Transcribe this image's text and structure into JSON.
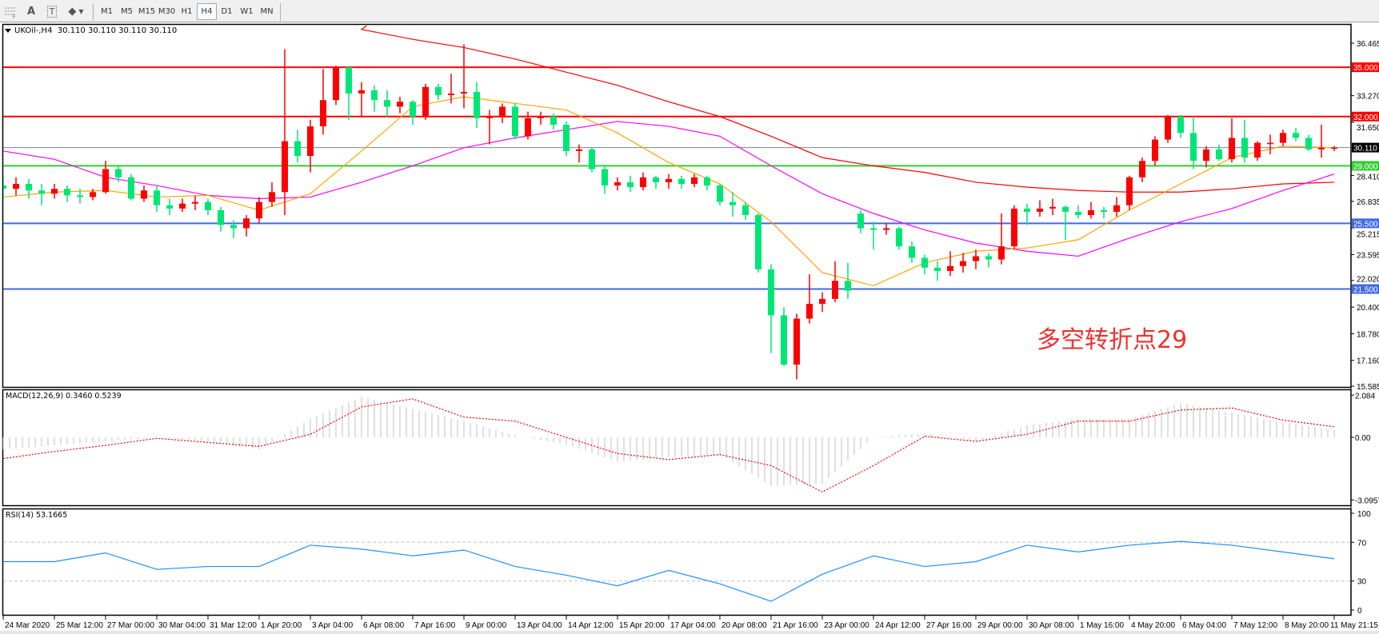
{
  "toolbar": {
    "icons": [
      "grid-icon",
      "text-a-icon",
      "text-label-icon",
      "shapes-icon"
    ],
    "text_icon_label": "A",
    "label_icon_label": "T",
    "timeframes": [
      "M1",
      "M5",
      "M15",
      "M30",
      "H1",
      "H4",
      "D1",
      "W1",
      "MN"
    ],
    "active_timeframe": "H4"
  },
  "chart": {
    "symbol_header": "UKOil-,H4  30.110 30.110 30.110 30.110",
    "annotation": "多空转折点29",
    "macd_label": "MACD(12,26,9) 0.3460 0.5239",
    "rsi_label": "RSI(14) 53.1665"
  },
  "chart_data": {
    "type": "candlestick",
    "symbol": "UKOil-",
    "timeframe": "H4",
    "colors": {
      "up": "#ff0000",
      "down": "#00e676",
      "ma_long": "#ff0000",
      "ma_mid": "#ff00ff",
      "ma_short": "#ffa500",
      "macd_hist": "#c0c0c0",
      "macd_signal": "#ff0000",
      "rsi": "#1e90ff"
    },
    "price_axis": {
      "range": [
        15.585,
        36.465
      ],
      "ticks": [
        "36.465",
        "33.270",
        "31.650",
        "28.410",
        "26.835",
        "25.215",
        "23.595",
        "22.020",
        "20.400",
        "18.780",
        "17.160",
        "15.585"
      ]
    },
    "time_axis": [
      "24 Mar 2020",
      "25 Mar 12:00",
      "27 Mar 00:00",
      "30 Mar 04:00",
      "31 Mar 12:00",
      "1 Apr 20:00",
      "3 Apr 04:00",
      "6 Apr 08:00",
      "7 Apr 16:00",
      "9 Apr 00:00",
      "13 Apr 04:00",
      "14 Apr 12:00",
      "15 Apr 20:00",
      "17 Apr 04:00",
      "20 Apr 08:00",
      "21 Apr 16:00",
      "23 Apr 00:00",
      "24 Apr 12:00",
      "27 Apr 16:00",
      "29 Apr 00:00",
      "30 Apr 08:00",
      "1 May 16:00",
      "4 May 20:00",
      "6 May 04:00",
      "7 May 12:00",
      "8 May 20:00",
      "11 May 21:15"
    ],
    "horizontal_lines": [
      {
        "price": 35.0,
        "label": "35.000",
        "color": "#ff0000"
      },
      {
        "price": 32.0,
        "label": "32.000",
        "color": "#ff0000"
      },
      {
        "price": 30.11,
        "label": "30.110",
        "color": "#778899",
        "label_bg": "#000000"
      },
      {
        "price": 29.0,
        "label": "29.000",
        "color": "#32cd32"
      },
      {
        "price": 25.5,
        "label": "25.500",
        "color": "#4169e1"
      },
      {
        "price": 21.5,
        "label": "21.500",
        "color": "#4169e1"
      }
    ],
    "ohlc": [
      [
        27.8,
        28.4,
        27.0,
        27.6
      ],
      [
        27.6,
        28.3,
        27.2,
        27.9
      ],
      [
        27.9,
        28.2,
        27.0,
        27.5
      ],
      [
        27.5,
        27.9,
        26.6,
        27.3
      ],
      [
        27.3,
        27.9,
        27.0,
        27.6
      ],
      [
        27.6,
        27.8,
        26.8,
        27.2
      ],
      [
        27.2,
        27.6,
        26.7,
        27.1
      ],
      [
        27.1,
        27.6,
        26.9,
        27.4
      ],
      [
        27.4,
        29.3,
        27.3,
        28.8
      ],
      [
        28.8,
        29.0,
        28.0,
        28.3
      ],
      [
        28.3,
        28.5,
        26.9,
        27.0
      ],
      [
        27.0,
        27.8,
        26.8,
        27.5
      ],
      [
        27.5,
        27.8,
        26.2,
        26.6
      ],
      [
        26.6,
        27.0,
        26.0,
        26.4
      ],
      [
        26.4,
        27.0,
        26.2,
        26.7
      ],
      [
        26.7,
        27.2,
        26.3,
        26.8
      ],
      [
        26.8,
        27.0,
        26.0,
        26.3
      ],
      [
        26.3,
        26.5,
        25.0,
        25.4
      ],
      [
        25.4,
        25.7,
        24.6,
        25.2
      ],
      [
        25.2,
        26.0,
        24.7,
        25.8
      ],
      [
        25.8,
        27.1,
        25.5,
        26.8
      ],
      [
        26.8,
        28.0,
        26.5,
        27.4
      ],
      [
        27.4,
        36.1,
        26.0,
        30.5
      ],
      [
        30.5,
        31.2,
        29.2,
        29.6
      ],
      [
        29.6,
        31.8,
        28.6,
        31.4
      ],
      [
        31.4,
        34.9,
        30.9,
        33.0
      ],
      [
        33.0,
        35.1,
        32.7,
        35.0
      ],
      [
        35.0,
        35.0,
        31.8,
        33.4
      ],
      [
        33.4,
        34.1,
        32.0,
        33.6
      ],
      [
        33.6,
        33.9,
        32.3,
        33.0
      ],
      [
        33.0,
        33.6,
        32.0,
        32.6
      ],
      [
        32.6,
        33.2,
        32.2,
        32.9
      ],
      [
        32.9,
        33.0,
        31.5,
        32.0
      ],
      [
        32.0,
        34.0,
        31.8,
        33.8
      ],
      [
        33.8,
        34.0,
        33.0,
        33.3
      ],
      [
        33.3,
        34.6,
        32.8,
        33.4
      ],
      [
        33.4,
        36.4,
        32.5,
        33.5
      ],
      [
        33.5,
        34.1,
        31.3,
        31.9
      ],
      [
        31.9,
        32.4,
        30.3,
        32.0
      ],
      [
        32.0,
        32.8,
        31.6,
        32.6
      ],
      [
        32.6,
        32.8,
        30.6,
        30.8
      ],
      [
        30.8,
        32.3,
        30.6,
        31.9
      ],
      [
        31.9,
        32.3,
        31.5,
        32.0
      ],
      [
        32.0,
        32.2,
        31.2,
        31.5
      ],
      [
        31.5,
        31.7,
        29.6,
        29.9
      ],
      [
        29.9,
        30.3,
        29.2,
        30.0
      ],
      [
        30.0,
        30.1,
        28.6,
        28.8
      ],
      [
        28.8,
        29.0,
        27.3,
        27.8
      ],
      [
        27.8,
        28.3,
        27.5,
        28.0
      ],
      [
        28.0,
        28.4,
        27.4,
        27.7
      ],
      [
        27.7,
        28.6,
        27.5,
        28.3
      ],
      [
        28.3,
        28.4,
        27.6,
        28.0
      ],
      [
        28.0,
        28.5,
        27.6,
        28.2
      ],
      [
        28.2,
        28.4,
        27.6,
        27.9
      ],
      [
        27.9,
        28.5,
        27.7,
        28.3
      ],
      [
        28.3,
        28.4,
        27.5,
        27.8
      ],
      [
        27.8,
        27.9,
        26.6,
        26.8
      ],
      [
        26.8,
        27.4,
        25.9,
        26.6
      ],
      [
        26.6,
        26.8,
        25.7,
        26.0
      ],
      [
        26.0,
        26.1,
        22.5,
        22.7
      ],
      [
        22.7,
        23.0,
        17.6,
        19.9
      ],
      [
        19.9,
        20.4,
        16.8,
        16.9
      ],
      [
        16.9,
        20.0,
        16.0,
        19.7
      ],
      [
        19.7,
        22.4,
        19.4,
        20.6
      ],
      [
        20.6,
        21.3,
        20.1,
        20.9
      ],
      [
        20.9,
        23.2,
        20.7,
        22.0
      ],
      [
        22.0,
        23.1,
        20.9,
        21.4
      ],
      [
        26.1,
        26.3,
        24.9,
        25.2
      ],
      [
        25.2,
        25.6,
        23.9,
        25.1
      ],
      [
        25.1,
        25.5,
        24.8,
        25.2
      ],
      [
        25.2,
        25.3,
        23.9,
        24.1
      ],
      [
        24.1,
        24.4,
        23.1,
        23.4
      ],
      [
        23.4,
        23.6,
        22.4,
        22.8
      ],
      [
        22.8,
        23.2,
        22.0,
        22.6
      ],
      [
        22.6,
        23.8,
        22.3,
        22.9
      ],
      [
        22.9,
        23.7,
        22.5,
        23.2
      ],
      [
        23.2,
        23.9,
        22.7,
        23.5
      ],
      [
        23.5,
        23.7,
        22.8,
        23.3
      ],
      [
        23.3,
        26.1,
        23.0,
        24.1
      ],
      [
        24.1,
        26.6,
        23.9,
        26.4
      ],
      [
        26.4,
        26.7,
        25.4,
        26.2
      ],
      [
        26.2,
        26.9,
        25.9,
        26.4
      ],
      [
        26.4,
        27.0,
        26.0,
        26.5
      ],
      [
        26.5,
        26.6,
        24.5,
        26.2
      ],
      [
        26.2,
        26.6,
        25.8,
        26.0
      ],
      [
        26.0,
        26.8,
        25.8,
        26.3
      ],
      [
        26.3,
        26.5,
        25.8,
        26.2
      ],
      [
        26.2,
        27.1,
        25.9,
        26.6
      ],
      [
        26.6,
        28.4,
        26.3,
        28.3
      ],
      [
        28.3,
        29.5,
        28.0,
        29.3
      ],
      [
        29.3,
        30.8,
        29.0,
        30.6
      ],
      [
        30.6,
        32.1,
        30.4,
        32.0
      ],
      [
        32.0,
        32.1,
        30.7,
        31.0
      ],
      [
        31.0,
        32.0,
        28.8,
        29.3
      ],
      [
        29.3,
        30.2,
        28.9,
        30.0
      ],
      [
        30.0,
        30.3,
        29.3,
        29.4
      ],
      [
        29.4,
        31.9,
        29.2,
        30.7
      ],
      [
        30.7,
        31.8,
        29.2,
        29.5
      ],
      [
        29.5,
        30.5,
        29.3,
        30.4
      ],
      [
        30.4,
        30.9,
        29.7,
        30.4
      ],
      [
        30.4,
        31.2,
        30.2,
        31.0
      ],
      [
        31.0,
        31.3,
        30.5,
        30.7
      ],
      [
        30.7,
        30.9,
        29.9,
        30.0
      ],
      [
        30.0,
        31.5,
        29.5,
        30.1
      ],
      [
        30.1,
        30.2,
        29.9,
        30.11
      ]
    ],
    "moving_averages_at_time_ticks": {
      "long_red": [
        null,
        null,
        null,
        null,
        null,
        null,
        null,
        37.3,
        36.7,
        36.2,
        35.5,
        34.7,
        33.9,
        32.9,
        32.0,
        30.8,
        29.5,
        29.0,
        28.6,
        28.0,
        27.7,
        27.5,
        27.4,
        27.4,
        27.6,
        27.9,
        28.0
      ],
      "mid_magenta": [
        29.9,
        29.4,
        28.3,
        27.8,
        27.2,
        27.0,
        27.1,
        28.0,
        29.0,
        30.1,
        30.7,
        31.2,
        31.7,
        31.4,
        30.8,
        29.0,
        27.3,
        26.1,
        25.1,
        24.3,
        23.8,
        23.5,
        24.6,
        25.6,
        26.4,
        27.5,
        28.5
      ],
      "short_orange": [
        27.1,
        27.4,
        27.5,
        27.1,
        27.2,
        26.3,
        27.3,
        29.9,
        32.6,
        33.2,
        32.8,
        32.4,
        31.0,
        29.2,
        27.9,
        25.6,
        22.5,
        21.7,
        23.1,
        23.8,
        24.0,
        24.5,
        26.3,
        27.9,
        29.5,
        30.2,
        30.1
      ]
    },
    "macd": {
      "params": "12,26,9",
      "axis_ticks": [
        "2.084",
        "0.00",
        "-3.0957"
      ],
      "range": [
        -3.0957,
        2.084
      ],
      "main_at_time_ticks": [
        -0.6,
        -0.4,
        -0.2,
        0.0,
        -0.2,
        -0.6,
        0.9,
        2.0,
        1.4,
        0.8,
        0.1,
        -0.35,
        -1.2,
        -1.0,
        -0.85,
        -2.4,
        -2.3,
        0.0,
        0.2,
        -0.2,
        0.6,
        0.9,
        0.9,
        1.7,
        1.2,
        0.75,
        0.346
      ],
      "signal_at_time_ticks": [
        -1.05,
        -0.7,
        -0.4,
        -0.05,
        -0.25,
        -0.45,
        0.15,
        1.5,
        1.9,
        1.0,
        0.8,
        0.0,
        -0.8,
        -1.1,
        -0.85,
        -1.4,
        -2.7,
        -1.4,
        0.05,
        -0.2,
        0.15,
        0.8,
        0.8,
        1.35,
        1.45,
        0.85,
        0.524
      ]
    },
    "rsi": {
      "period": 14,
      "axis_ticks": [
        "100",
        "70",
        "30",
        "0"
      ],
      "levels": [
        70,
        30
      ],
      "range": [
        0,
        100
      ],
      "values_at_time_ticks": [
        50,
        50,
        59,
        42,
        45,
        45,
        67,
        63,
        56,
        62,
        45,
        36,
        25,
        41,
        27,
        9,
        37,
        56,
        45,
        50,
        67,
        60,
        67,
        71,
        67,
        60,
        53
      ]
    }
  }
}
